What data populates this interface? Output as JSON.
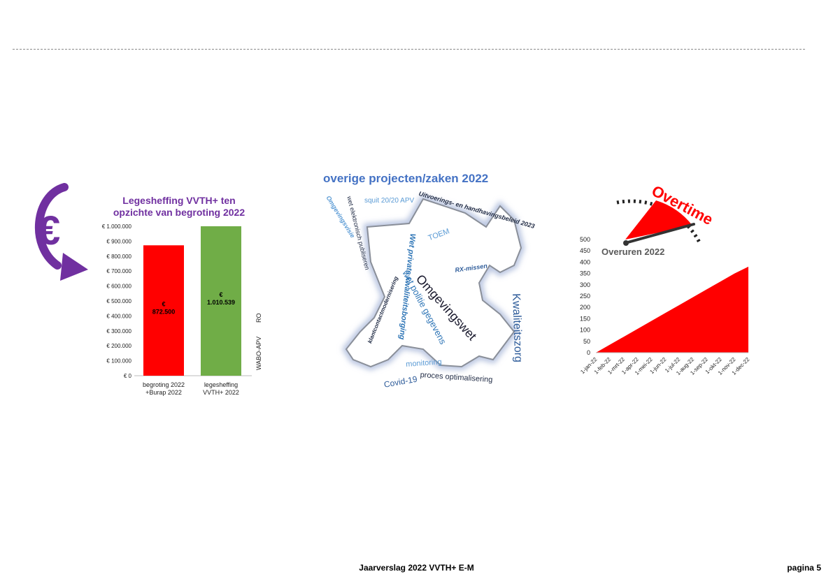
{
  "footer": {
    "title": "Jaarverslag 2022 VVTH+ E-M",
    "page": "pagina 5"
  },
  "icons": {
    "euro": "euro-circular-arrow-icon",
    "gauge": "overtime-speedometer-icon"
  },
  "colors": {
    "purple": "#7030a0",
    "red": "#ff0000",
    "green": "#70ad47",
    "blue": "#4472c4"
  },
  "left_chart": {
    "title_line1": "Legesheffing VVTH+ ten",
    "title_line2": "opzichte van begroting 2022",
    "side_labels": [
      "WABO-APV",
      "RO"
    ]
  },
  "word_cloud": {
    "title": "overige projecten/zaken 2022",
    "words": [
      "squit 20/20 APV",
      "Uitvoerings- en handhavingsbeleid 2023",
      "wet politie gegevens",
      "Wet private kwaliteitsborging",
      "Omgevingswet",
      "Kwaliteitszorg",
      "Covid-19",
      "TOEM",
      "RX-missen",
      "monitoring",
      "proces optimalisering",
      "wet elektronisch publiseren",
      "Omgevingsvisie",
      "klantcontactmodernisering"
    ]
  },
  "overtime": {
    "badge_text": "Overtime",
    "chart_title": "Overuren 2022"
  },
  "chart_data": [
    {
      "type": "bar",
      "title": "Legesheffing VVTH+ ten opzichte van begroting 2022",
      "categories": [
        "begroting 2022 +Burap 2022",
        "legesheffing VVTH+ 2022"
      ],
      "category_lines": [
        [
          "begroting 2022",
          "+Burap 2022"
        ],
        [
          "legesheffing",
          "VVTH+ 2022"
        ]
      ],
      "values": [
        872500,
        1010539
      ],
      "data_labels": [
        [
          "€",
          "872.500"
        ],
        [
          "€",
          "1.010.539"
        ]
      ],
      "bar_colors": [
        "#ff0000",
        "#70ad47"
      ],
      "ylim": [
        0,
        1000000
      ],
      "yticks": [
        0,
        100000,
        200000,
        300000,
        400000,
        500000,
        600000,
        700000,
        800000,
        900000,
        1000000
      ],
      "ytick_labels": [
        "€ 0",
        "€ 100.000",
        "€ 200.000",
        "€ 300.000",
        "€ 400.000",
        "€ 500.000",
        "€ 600.000",
        "€ 700.000",
        "€ 800.000",
        "€ 900.000",
        "€ 1.000.000"
      ],
      "grid": false
    },
    {
      "type": "area",
      "title": "Overuren 2022",
      "x": [
        "1-jan-22",
        "1-feb-22",
        "1-mrt-22",
        "1-apr-22",
        "1-mei-22",
        "1-jun-22",
        "1-jul-22",
        "1-aug-22",
        "1-sep-22",
        "1-okt-22",
        "1-nov-22",
        "1-dec-22"
      ],
      "values": [
        0,
        35,
        70,
        105,
        140,
        175,
        210,
        245,
        280,
        315,
        350,
        380
      ],
      "ylim": [
        0,
        500
      ],
      "yticks": [
        0,
        50,
        100,
        150,
        200,
        250,
        300,
        350,
        400,
        450,
        500
      ],
      "ytick_labels": [
        "0",
        "50",
        "100",
        "150",
        "200",
        "250",
        "300",
        "350",
        "400",
        "450",
        "500"
      ],
      "color": "#ff0000",
      "grid": false
    }
  ]
}
